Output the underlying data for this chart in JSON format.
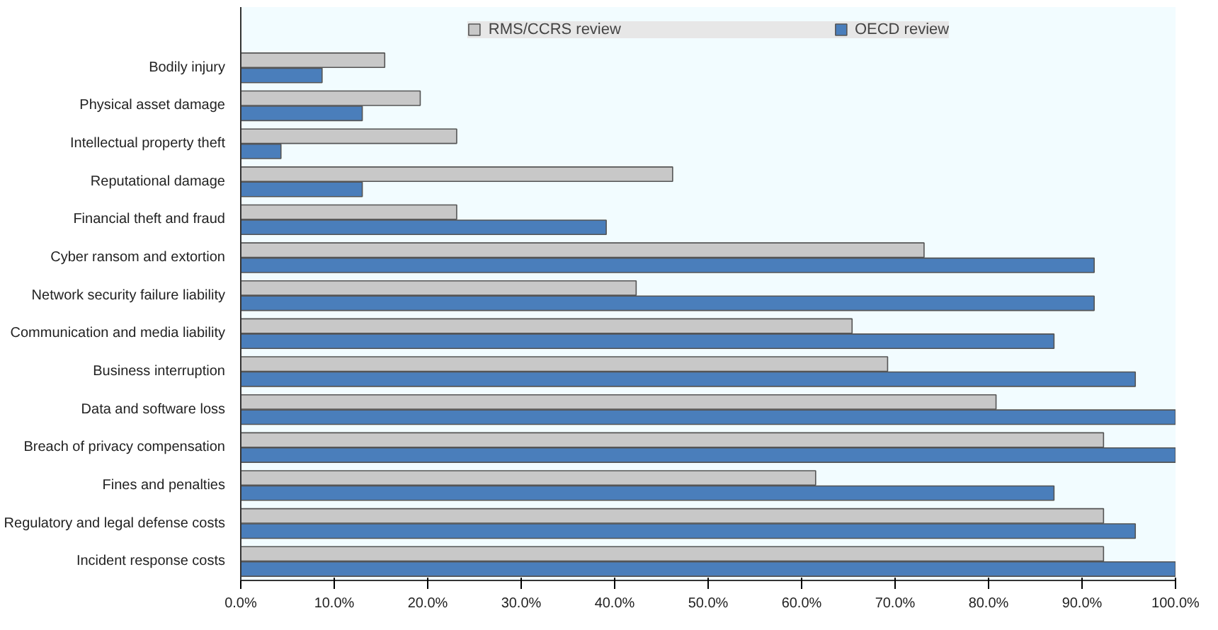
{
  "chart_data": {
    "type": "bar",
    "orientation": "horizontal",
    "legend": "top",
    "categories": [
      "Bodily injury",
      "Physical asset damage",
      "Intellectual property theft",
      "Reputational damage",
      "Financial theft and fraud",
      "Cyber ransom and extortion",
      "Network security failure liability",
      "Communication and media liability",
      "Business interruption",
      "Data and software loss",
      "Breach of privacy compensation",
      "Fines and penalties",
      "Regulatory and legal defense costs",
      "Incident response costs"
    ],
    "series": [
      {
        "name": "RMS/CCRS review",
        "color": "#c8c8c8",
        "values": [
          15.4,
          19.2,
          23.1,
          46.2,
          23.1,
          73.1,
          42.3,
          65.4,
          69.2,
          80.8,
          92.3,
          61.5,
          92.3,
          92.3
        ]
      },
      {
        "name": "OECD review",
        "color": "#4a7ebb",
        "values": [
          8.7,
          13.0,
          4.3,
          13.0,
          39.1,
          91.3,
          91.3,
          87.0,
          95.7,
          100,
          100,
          87.0,
          95.7,
          100
        ]
      }
    ],
    "xlim": [
      0,
      100
    ],
    "xticks": [
      {
        "value": 0,
        "label": "0.0%"
      },
      {
        "value": 10,
        "label": "10.0%"
      },
      {
        "value": 20,
        "label": "20.0%"
      },
      {
        "value": 30,
        "label": "30.0%"
      },
      {
        "value": 40,
        "label": "40.0%"
      },
      {
        "value": 50,
        "label": "50.0%"
      },
      {
        "value": 60,
        "label": "60.0%"
      },
      {
        "value": 70,
        "label": "70.0%"
      },
      {
        "value": 80,
        "label": "80.0%"
      },
      {
        "value": 90,
        "label": "90.0%"
      },
      {
        "value": 100,
        "label": "100.0%"
      }
    ]
  }
}
